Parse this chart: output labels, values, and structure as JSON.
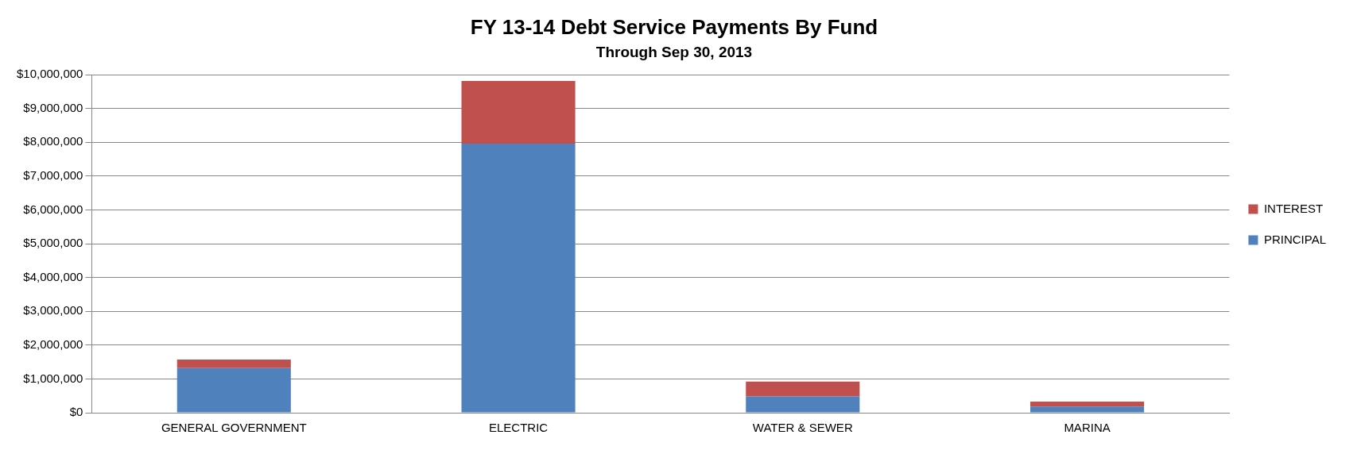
{
  "chart_data": {
    "type": "bar",
    "title": "FY 13-14 Debt Service Payments By Fund",
    "subtitle": "Through Sep 30, 2013",
    "categories": [
      "GENERAL GOVERNMENT",
      "ELECTRIC",
      "WATER & SEWER",
      "MARINA"
    ],
    "series": [
      {
        "name": "PRINCIPAL",
        "color": "#4f81bd",
        "values": [
          1320000,
          7960000,
          480000,
          180000
        ]
      },
      {
        "name": "INTEREST",
        "color": "#c0504d",
        "values": [
          250000,
          1850000,
          440000,
          150000
        ]
      }
    ],
    "stacked": true,
    "ylim": [
      0,
      10000000
    ],
    "yticks": [
      {
        "value": 0,
        "label": "$0"
      },
      {
        "value": 1000000,
        "label": "$1,000,000"
      },
      {
        "value": 2000000,
        "label": "$2,000,000"
      },
      {
        "value": 3000000,
        "label": "$3,000,000"
      },
      {
        "value": 4000000,
        "label": "$4,000,000"
      },
      {
        "value": 5000000,
        "label": "$5,000,000"
      },
      {
        "value": 6000000,
        "label": "$6,000,000"
      },
      {
        "value": 7000000,
        "label": "$7,000,000"
      },
      {
        "value": 8000000,
        "label": "$8,000,000"
      },
      {
        "value": 9000000,
        "label": "$9,000,000"
      },
      {
        "value": 10000000,
        "label": "$10,000,000"
      }
    ],
    "grid": "y",
    "legend": "right"
  }
}
